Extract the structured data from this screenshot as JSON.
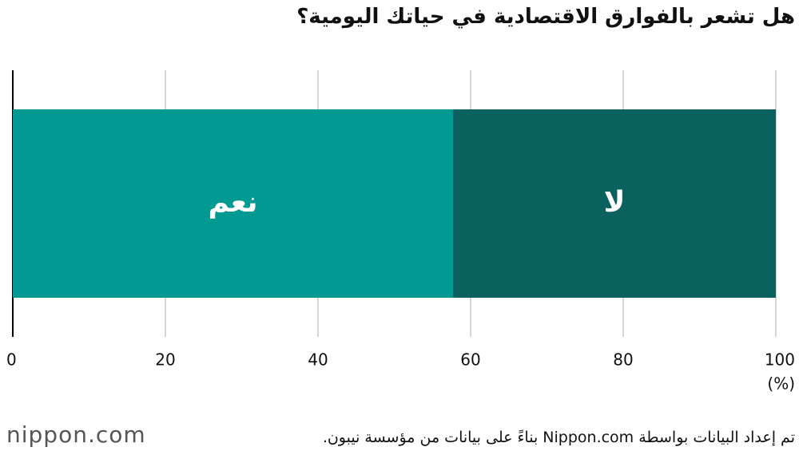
{
  "chart_data": {
    "type": "stacked-barh",
    "title": "هل تشعر بالفوارق الاقتصادية في حياتك اليومية؟",
    "series": [
      {
        "name": "نعم",
        "color": "#009a93",
        "values": [
          57.7
        ]
      },
      {
        "name": "لا",
        "color": "#0b615e",
        "values": [
          42.3
        ]
      }
    ],
    "xlim": [
      0,
      100
    ],
    "xticks": [
      0,
      20,
      40,
      60,
      80,
      100
    ],
    "xlabel": "(%)",
    "grid": true,
    "source": "تم إعداد البيانات بواسطة Nippon.com بناءً على بيانات من مؤسسة نيبون.",
    "logo": "nippon.com"
  }
}
